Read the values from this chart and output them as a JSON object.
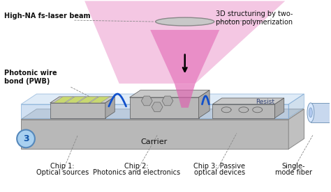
{
  "labels": {
    "laser_beam": "High-NA fs-laser beam",
    "pwb": "Photonic wire\nbond (PWB)",
    "structuring": "3D structuring by two-\nphoton polymerization",
    "resist": "Resist",
    "carrier": "Carrier",
    "circle_num": "3",
    "chip1_title": "Chip 1:",
    "chip1_sub": "Optical sources",
    "chip2_title": "Chip 2:",
    "chip2_sub": "Photonics and electronics",
    "chip3_title": "Chip 3: Passive",
    "chip3_sub": "optical devices",
    "fiber_title": "Single-",
    "fiber_sub": "mode fiber"
  },
  "colors": {
    "carrier_top": "#d0d0d0",
    "carrier_front": "#b8b8b8",
    "carrier_right": "#c0c0c0",
    "resist_top": "#c0d8f0",
    "resist_front": "#aac8e8",
    "resist_right": "#98b8d8",
    "laser_cone": "#e060b0",
    "laser_cone_alpha": 0.6,
    "laser_arrow": "#111111",
    "pwb_wire": "#1050cc",
    "lens_fill": "#c8c8c8",
    "lens_edge": "#888888",
    "circle_fill": "#a8d0f0",
    "circle_edge": "#5588bb",
    "dashed_line": "#888888",
    "fiber_fill": "#b8ccee",
    "text_color": "#111111",
    "chip_top": "#c8c8c8",
    "chip_front": "#b0b0b0",
    "chip_right": "#a8a8a8",
    "chip1_stripe": "#c8d870",
    "chip2_hex": "#909090",
    "chip3_wave": "#707070"
  }
}
